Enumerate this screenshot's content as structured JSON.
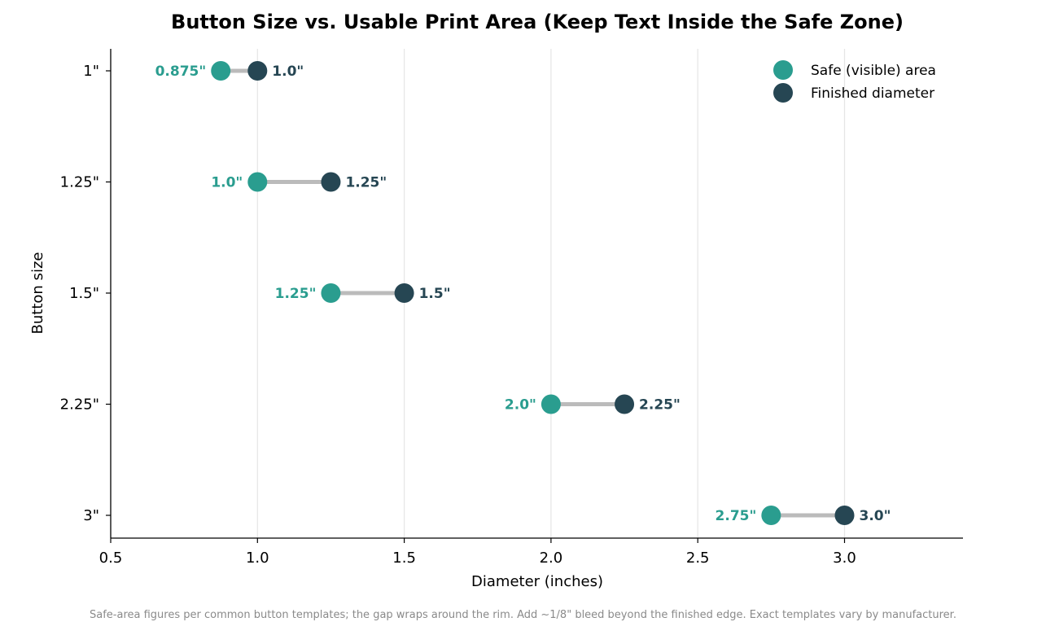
{
  "chart_data": {
    "type": "dumbbell",
    "title": "Button Size vs. Usable Print Area (Keep Text Inside the Safe Zone)",
    "xlabel": "Diameter (inches)",
    "ylabel": "Button size",
    "xlim": [
      0.5,
      3.4
    ],
    "x_ticks": [
      "0.5",
      "1.0",
      "1.5",
      "2.0",
      "2.5",
      "3.0"
    ],
    "x_tick_values": [
      0.5,
      1.0,
      1.5,
      2.0,
      2.5,
      3.0
    ],
    "categories": [
      "1\"",
      "1.25\"",
      "1.5\"",
      "2.25\"",
      "3\""
    ],
    "grid": "vertical",
    "legend_position": "top-right",
    "series": [
      {
        "name": "Safe (visible) area",
        "color": "#2a9d8f",
        "values": [
          0.875,
          1.0,
          1.25,
          2.0,
          2.75
        ],
        "labels": [
          "0.875\"",
          "1.0\"",
          "1.25\"",
          "2.0\"",
          "2.75\""
        ]
      },
      {
        "name": "Finished diameter",
        "color": "#264653",
        "values": [
          1.0,
          1.25,
          1.5,
          2.25,
          3.0
        ],
        "labels": [
          "1.0\"",
          "1.25\"",
          "1.5\"",
          "2.25\"",
          "3.0\""
        ]
      }
    ],
    "connector_color": "#bbbbbb",
    "caption": "Safe-area figures per common button templates; the gap wraps around the rim. Add ~1/8\" bleed beyond the finished edge. Exact templates vary by manufacturer."
  }
}
